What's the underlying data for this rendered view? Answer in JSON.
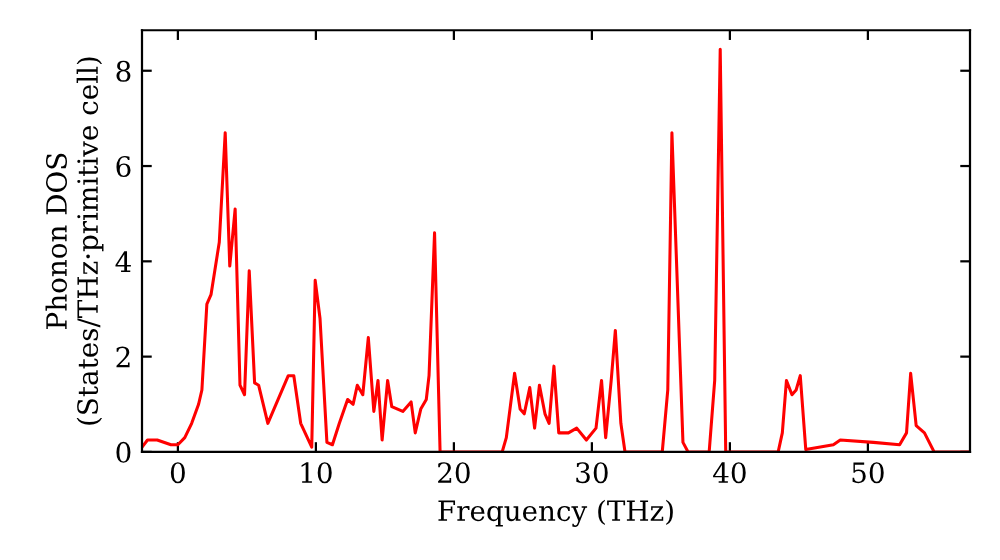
{
  "chart_data": {
    "type": "line",
    "xlabel": "Frequency (THz)",
    "ylabel": "Phonon DOS\n(States/THz·primitive cell)",
    "xlim": [
      -2.6,
      57.4
    ],
    "ylim": [
      0,
      8.85
    ],
    "xticks": [
      0,
      10,
      20,
      30,
      40,
      50
    ],
    "yticks": [
      0,
      2,
      4,
      6,
      8
    ],
    "grid": false,
    "marker": "none",
    "line_style": "solid",
    "series": [
      {
        "color": "#ff0000",
        "x": [
          -2.6,
          -2.2,
          -1.5,
          -0.5,
          0,
          0.5,
          1.0,
          1.5,
          1.74,
          2.1,
          2.4,
          3.0,
          3.43,
          3.76,
          4.15,
          4.5,
          4.83,
          5.17,
          5.56,
          5.85,
          6.52,
          8.0,
          8.4,
          8.9,
          9.7,
          9.95,
          10.3,
          10.8,
          11.2,
          11.7,
          12.3,
          12.7,
          13.0,
          13.4,
          13.8,
          14.2,
          14.5,
          14.8,
          15.2,
          15.5,
          16.3,
          16.9,
          17.2,
          17.6,
          18.0,
          18.2,
          18.6,
          19.0,
          23.5,
          23.8,
          24.4,
          24.8,
          25.1,
          25.5,
          25.85,
          26.2,
          26.6,
          26.9,
          27.25,
          27.6,
          28.3,
          28.9,
          29.6,
          30.3,
          30.7,
          31.0,
          31.4,
          31.7,
          32.1,
          32.4,
          35.1,
          35.5,
          35.8,
          36.6,
          36.97,
          38.5,
          38.9,
          39.3,
          39.7,
          43.5,
          43.8,
          44.1,
          44.5,
          44.8,
          45.1,
          45.5,
          47.5,
          48.0,
          50.4,
          52.3,
          52.8,
          53.1,
          53.5,
          54.1,
          54.8,
          57.4
        ],
        "values": [
          0.1,
          0.25,
          0.25,
          0.15,
          0.15,
          0.3,
          0.6,
          1.0,
          1.3,
          3.1,
          3.3,
          4.4,
          6.7,
          3.9,
          5.1,
          1.4,
          1.2,
          3.8,
          1.45,
          1.4,
          0.6,
          1.6,
          1.6,
          0.6,
          0.1,
          3.6,
          2.8,
          0.2,
          0.15,
          0.6,
          1.1,
          1.0,
          1.4,
          1.2,
          2.4,
          0.85,
          1.5,
          0.25,
          1.5,
          0.95,
          0.85,
          1.05,
          0.4,
          0.9,
          1.1,
          1.6,
          4.6,
          0,
          0,
          0.3,
          1.65,
          0.9,
          0.8,
          1.35,
          0.5,
          1.4,
          0.8,
          0.6,
          1.8,
          0.4,
          0.4,
          0.5,
          0.25,
          0.5,
          1.5,
          0.3,
          1.5,
          2.55,
          0.6,
          0,
          0,
          1.3,
          6.7,
          0.2,
          0,
          0,
          1.5,
          8.45,
          0,
          0,
          0.4,
          1.5,
          1.2,
          1.3,
          1.6,
          0.05,
          0.15,
          0.25,
          0.2,
          0.15,
          0.4,
          1.65,
          0.55,
          0.4,
          0,
          0
        ]
      }
    ]
  }
}
